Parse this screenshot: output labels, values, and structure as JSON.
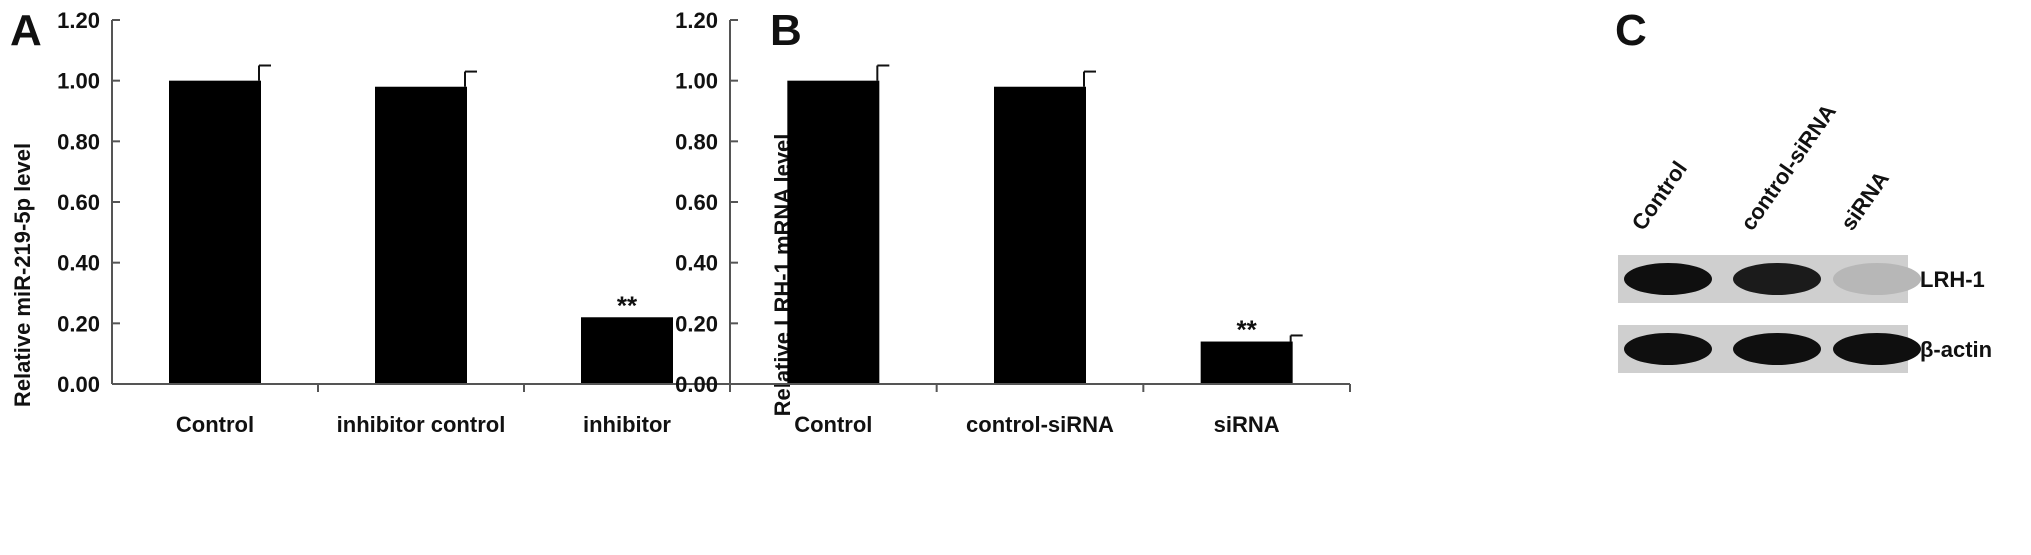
{
  "chart_data": [
    {
      "panel": "A",
      "type": "bar",
      "ylabel": "Relative miR-219-5p level",
      "xlabel": "",
      "ylim": [
        0,
        1.2
      ],
      "yticks": [
        "0.00",
        "0.20",
        "0.40",
        "0.60",
        "0.80",
        "1.00",
        "1.20"
      ],
      "categories": [
        "Control",
        "inhibitor control",
        "inhibitor"
      ],
      "values": [
        1.0,
        0.98,
        0.22
      ],
      "errors": [
        0.05,
        0.05,
        0.0
      ],
      "annotations": [
        "",
        "",
        "**"
      ],
      "bar_color": "#000000"
    },
    {
      "panel": "B",
      "type": "bar",
      "ylabel": "Relative LRH-1 mRNA level",
      "xlabel": "",
      "ylim": [
        0,
        1.2
      ],
      "yticks": [
        "0.00",
        "0.20",
        "0.40",
        "0.60",
        "0.80",
        "1.00",
        "1.20"
      ],
      "categories": [
        "Control",
        "control-siRNA",
        "siRNA"
      ],
      "values": [
        1.0,
        0.98,
        0.14
      ],
      "errors": [
        0.05,
        0.05,
        0.02
      ],
      "annotations": [
        "",
        "",
        "**"
      ],
      "bar_color": "#000000"
    }
  ],
  "blot": {
    "panel": "C",
    "lanes": [
      "Control",
      "control-siRNA",
      "siRNA"
    ],
    "rows": [
      {
        "label": "LRH-1",
        "intensities": [
          1.0,
          0.95,
          0.3
        ]
      },
      {
        "label": "β-actin",
        "intensities": [
          1.0,
          1.0,
          1.0
        ]
      }
    ]
  }
}
